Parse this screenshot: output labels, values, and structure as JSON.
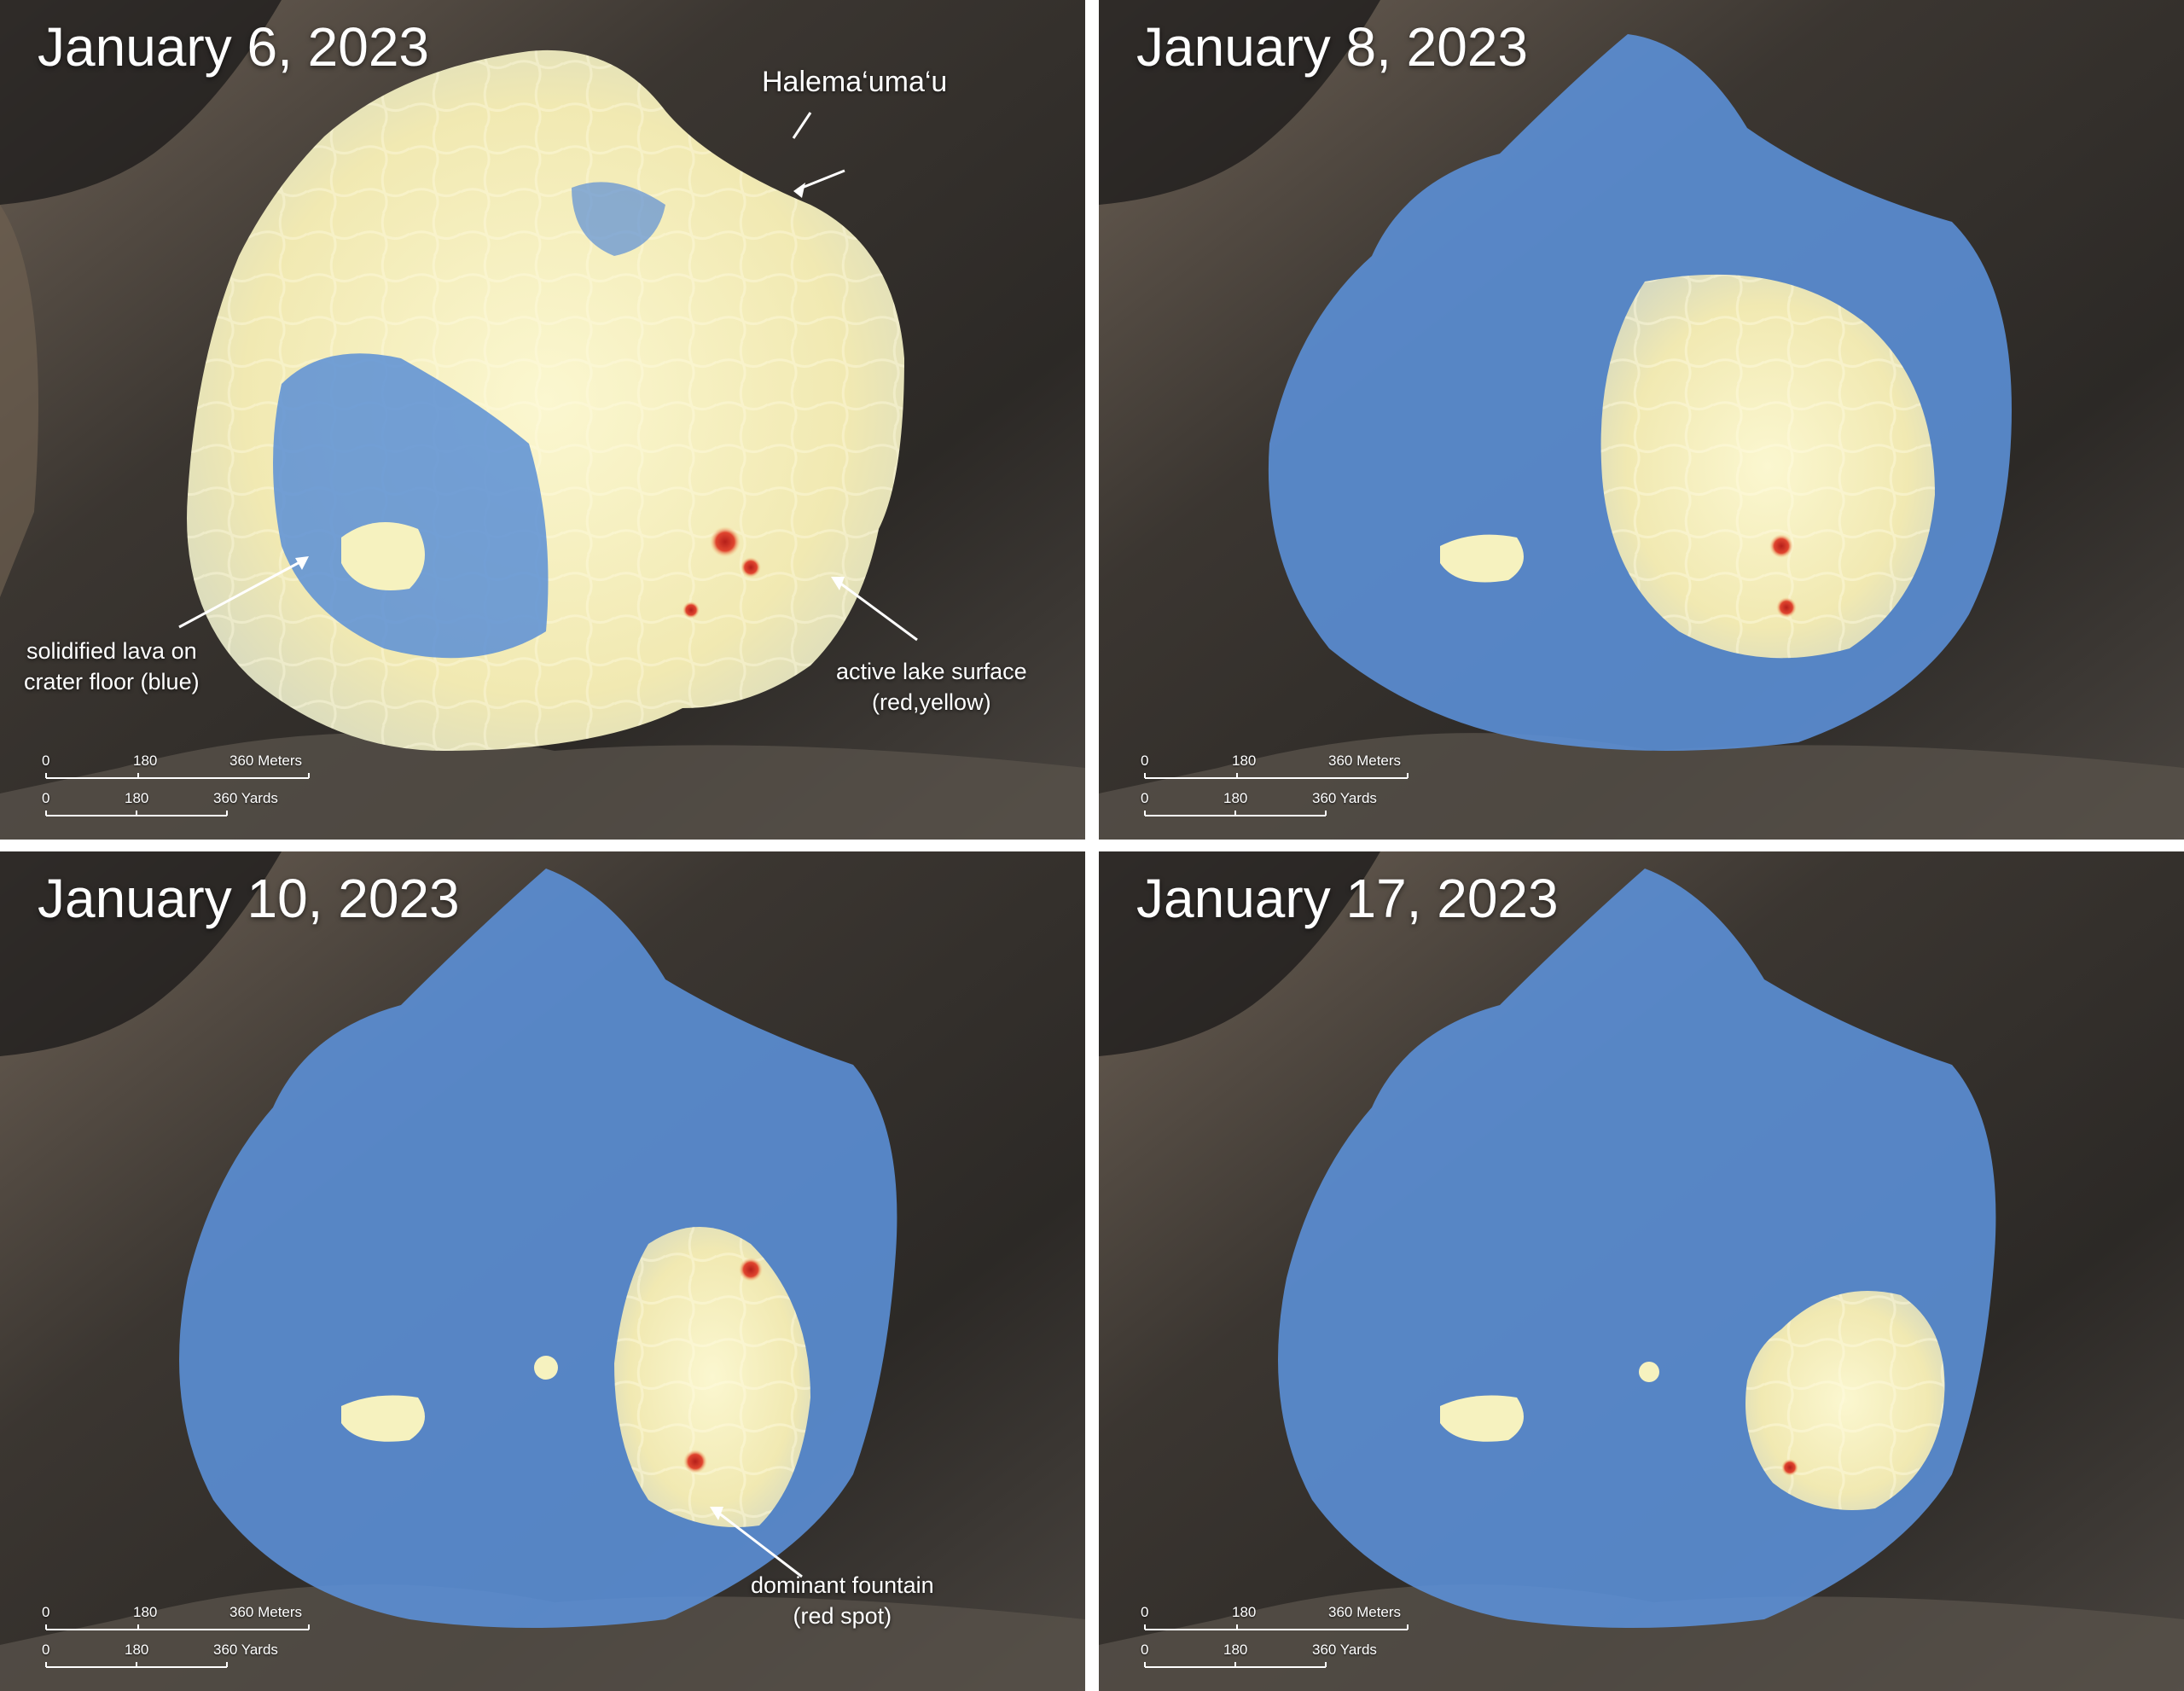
{
  "panels": [
    {
      "date": "January 6, 2023"
    },
    {
      "date": "January 8, 2023"
    },
    {
      "date": "January 10, 2023"
    },
    {
      "date": "January 17, 2023"
    }
  ],
  "annotations": {
    "crater_name": "Halema‘uma‘u",
    "solidified_line1": "solidified lava on",
    "solidified_line2": "crater floor (blue)",
    "active_line1": "active lake surface",
    "active_line2": "(red,yellow)",
    "fountain_line1": "dominant fountain",
    "fountain_line2": "(red spot)"
  },
  "scale": {
    "meters_ticks": [
      "0",
      "180",
      "360 Meters"
    ],
    "yards_ticks": [
      "0",
      "180",
      "360 Yards"
    ]
  },
  "colors": {
    "solidified_lava": "#5b8fd6",
    "active_lake": "#f6f2bf",
    "hot_spot": "#d8322b",
    "crater_rock": "#3a3733"
  }
}
